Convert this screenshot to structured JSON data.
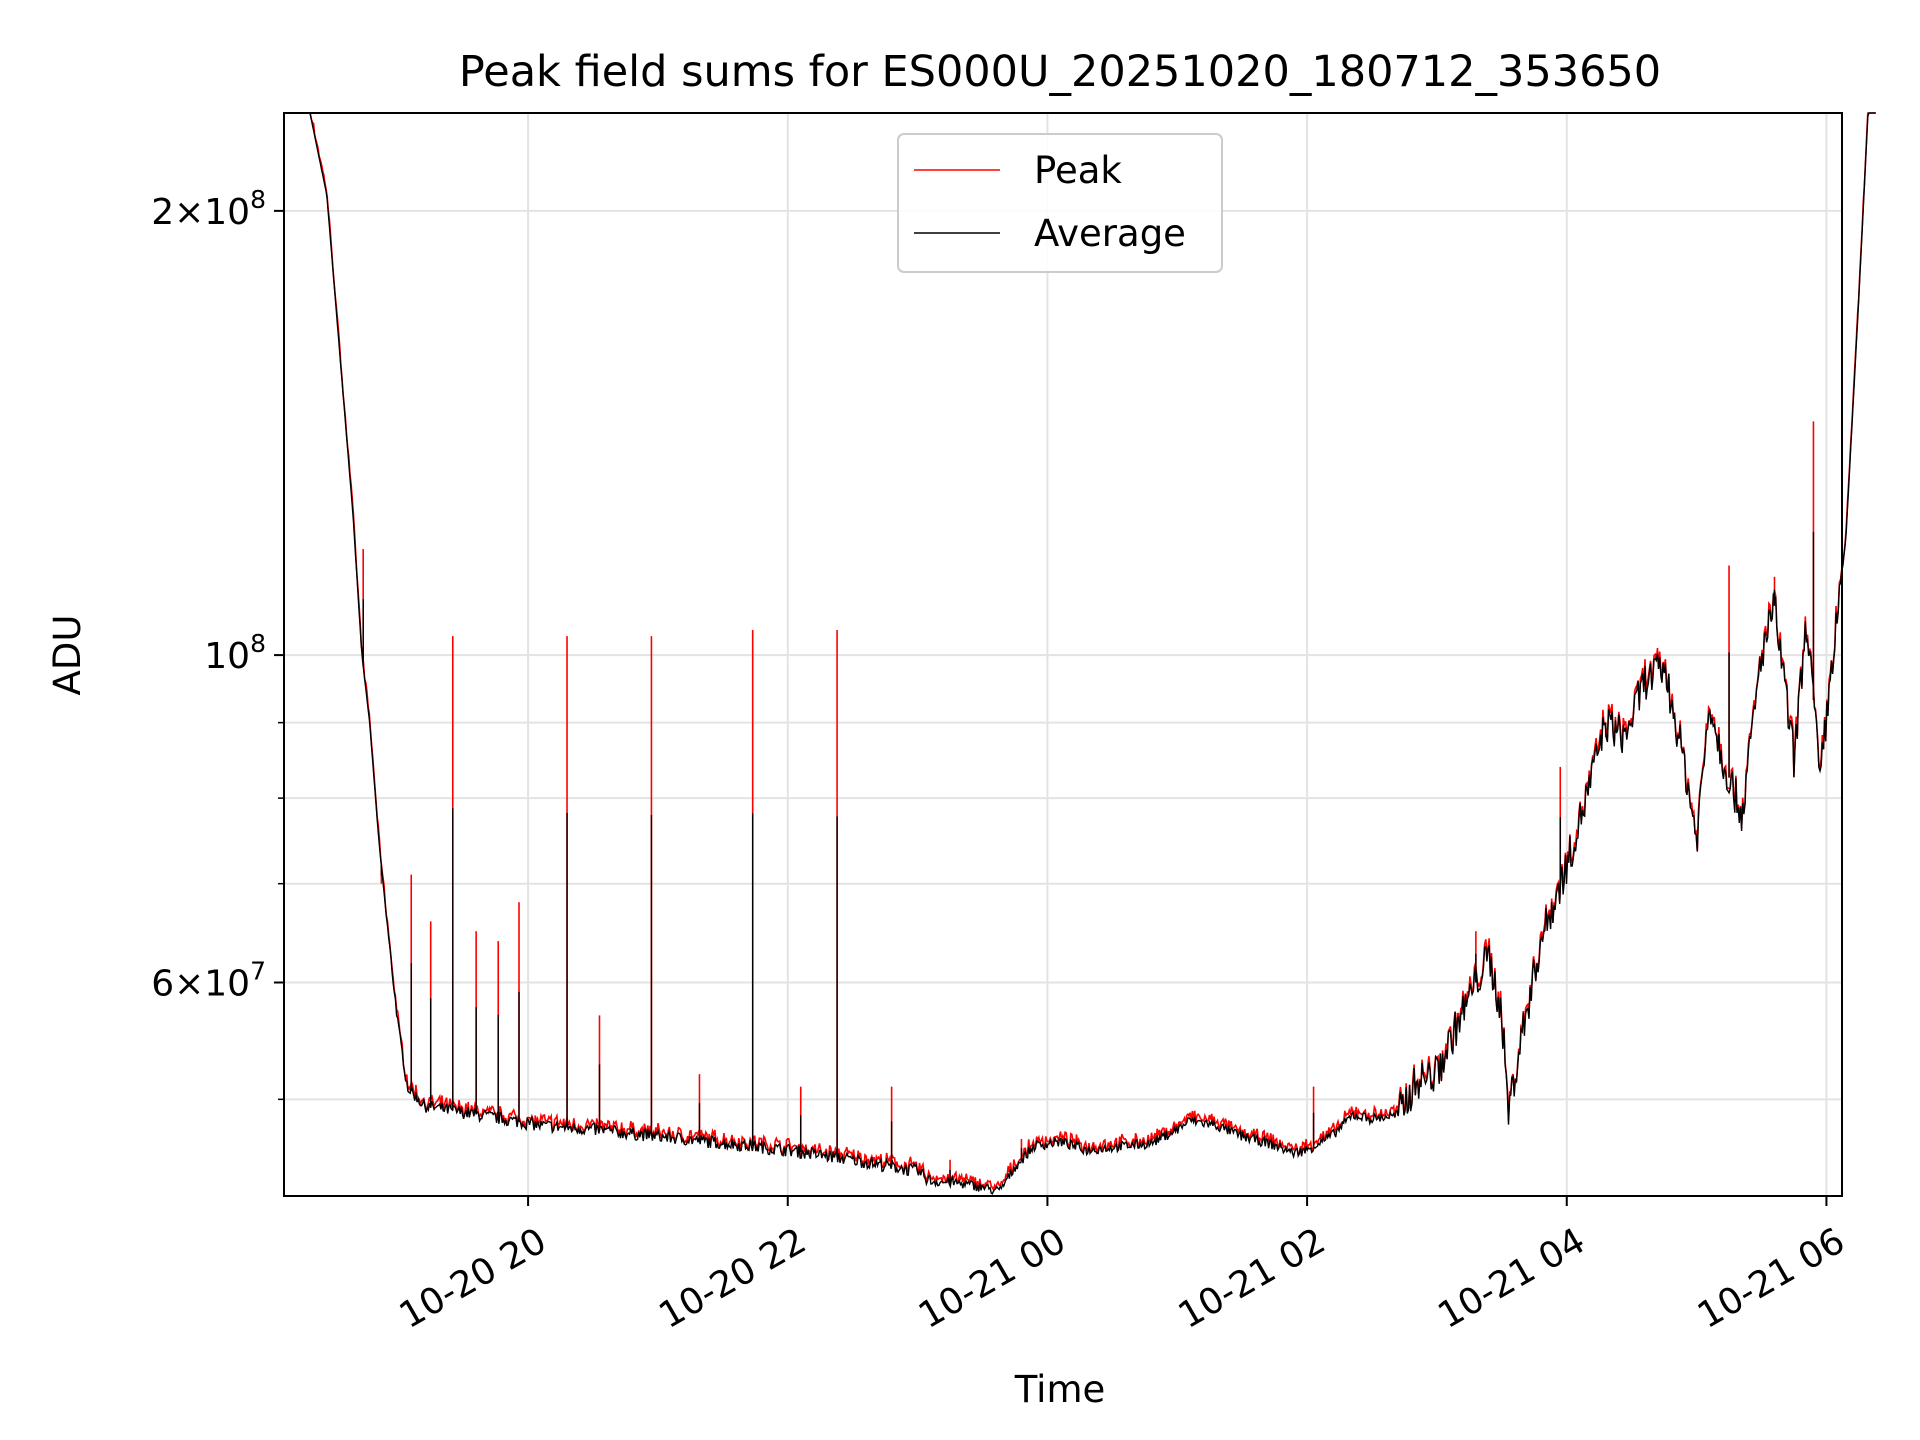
{
  "chart_data": {
    "type": "line",
    "title": "Peak field sums for ES000U_20251020_180712_353650",
    "xlabel": "Time",
    "ylabel": "ADU",
    "yscale": "log",
    "xlim_hours": [
      18.12,
      30.12
    ],
    "ylim": [
      43000000,
      233000000
    ],
    "grid": true,
    "legend_position": "top-center",
    "x_ticks": [
      {
        "hour": 20,
        "label": "10-20 20"
      },
      {
        "hour": 22,
        "label": "10-20 22"
      },
      {
        "hour": 24,
        "label": "10-21 00"
      },
      {
        "hour": 26,
        "label": "10-21 02"
      },
      {
        "hour": 28,
        "label": "10-21 04"
      },
      {
        "hour": 30,
        "label": "10-21 06"
      }
    ],
    "y_major_ticks": [
      {
        "value": 200000000,
        "mantissa": "2",
        "exponent": "8"
      },
      {
        "value": 100000000,
        "mantissa": "",
        "exponent": "8"
      },
      {
        "value": 60000000,
        "mantissa": "6",
        "exponent": "7"
      }
    ],
    "y_minor_ticks": [
      50000000,
      70000000,
      80000000,
      90000000
    ],
    "series": [
      {
        "name": "Peak",
        "color": "#ff0000"
      },
      {
        "name": "Average",
        "color": "#000000"
      }
    ],
    "average_points": [
      [
        18.12,
        233000000
      ],
      [
        18.32,
        233000000
      ],
      [
        18.45,
        205000000
      ],
      [
        18.55,
        160000000
      ],
      [
        18.65,
        125000000
      ],
      [
        18.72,
        100000000
      ],
      [
        18.78,
        90000000
      ],
      [
        18.85,
        75000000
      ],
      [
        18.92,
        65000000
      ],
      [
        19.0,
        56000000
      ],
      [
        19.07,
        51000000
      ],
      [
        19.2,
        49500000
      ],
      [
        19.5,
        49000000
      ],
      [
        19.8,
        48500000
      ],
      [
        20.1,
        48000000
      ],
      [
        20.5,
        47700000
      ],
      [
        21.0,
        47200000
      ],
      [
        21.5,
        46700000
      ],
      [
        22.0,
        46200000
      ],
      [
        22.5,
        45500000
      ],
      [
        23.0,
        44700000
      ],
      [
        23.1,
        44000000
      ],
      [
        23.3,
        43900000
      ],
      [
        23.5,
        43600000
      ],
      [
        23.63,
        43300000
      ],
      [
        23.75,
        45000000
      ],
      [
        23.9,
        46500000
      ],
      [
        24.1,
        46800000
      ],
      [
        24.3,
        46200000
      ],
      [
        24.5,
        46400000
      ],
      [
        24.8,
        46700000
      ],
      [
        25.0,
        47700000
      ],
      [
        25.1,
        48400000
      ],
      [
        25.3,
        48000000
      ],
      [
        25.5,
        47200000
      ],
      [
        25.7,
        46700000
      ],
      [
        25.9,
        46000000
      ],
      [
        26.0,
        46200000
      ],
      [
        26.2,
        47300000
      ],
      [
        26.35,
        48800000
      ],
      [
        26.5,
        48500000
      ],
      [
        26.7,
        48800000
      ],
      [
        26.85,
        51500000
      ],
      [
        27.0,
        52000000
      ],
      [
        27.15,
        56000000
      ],
      [
        27.3,
        60000000
      ],
      [
        27.4,
        62500000
      ],
      [
        27.5,
        57000000
      ],
      [
        27.55,
        49000000
      ],
      [
        27.65,
        55000000
      ],
      [
        27.8,
        64000000
      ],
      [
        28.0,
        72000000
      ],
      [
        28.15,
        80000000
      ],
      [
        28.3,
        90000000
      ],
      [
        28.45,
        88000000
      ],
      [
        28.6,
        96000000
      ],
      [
        28.75,
        98000000
      ],
      [
        28.9,
        85000000
      ],
      [
        29.0,
        75000000
      ],
      [
        29.1,
        93000000
      ],
      [
        29.2,
        85000000
      ],
      [
        29.35,
        78000000
      ],
      [
        29.5,
        100000000
      ],
      [
        29.6,
        108000000
      ],
      [
        29.7,
        92000000
      ],
      [
        29.75,
        85000000
      ],
      [
        29.85,
        106000000
      ],
      [
        29.95,
        82000000
      ],
      [
        30.05,
        100000000
      ],
      [
        30.15,
        120000000
      ],
      [
        30.25,
        175000000
      ],
      [
        30.32,
        233000000
      ],
      [
        30.38,
        233000000
      ]
    ],
    "peak_spikes": [
      [
        18.73,
        118000000
      ],
      [
        18.87,
        70000000
      ],
      [
        19.1,
        71000000
      ],
      [
        19.25,
        66000000
      ],
      [
        19.42,
        103000000
      ],
      [
        19.6,
        65000000
      ],
      [
        19.77,
        64000000
      ],
      [
        19.93,
        68000000
      ],
      [
        20.3,
        103000000
      ],
      [
        20.55,
        57000000
      ],
      [
        20.95,
        103000000
      ],
      [
        21.32,
        52000000
      ],
      [
        21.73,
        104000000
      ],
      [
        22.1,
        51000000
      ],
      [
        22.38,
        104000000
      ],
      [
        22.8,
        51000000
      ],
      [
        23.25,
        45500000
      ],
      [
        23.8,
        47000000
      ],
      [
        26.05,
        51000000
      ],
      [
        27.3,
        65000000
      ],
      [
        27.95,
        84000000
      ],
      [
        28.3,
        88000000
      ],
      [
        29.25,
        115000000
      ],
      [
        29.6,
        113000000
      ],
      [
        29.9,
        144000000
      ]
    ]
  },
  "legend": {
    "peak_label": "Peak",
    "average_label": "Average"
  }
}
